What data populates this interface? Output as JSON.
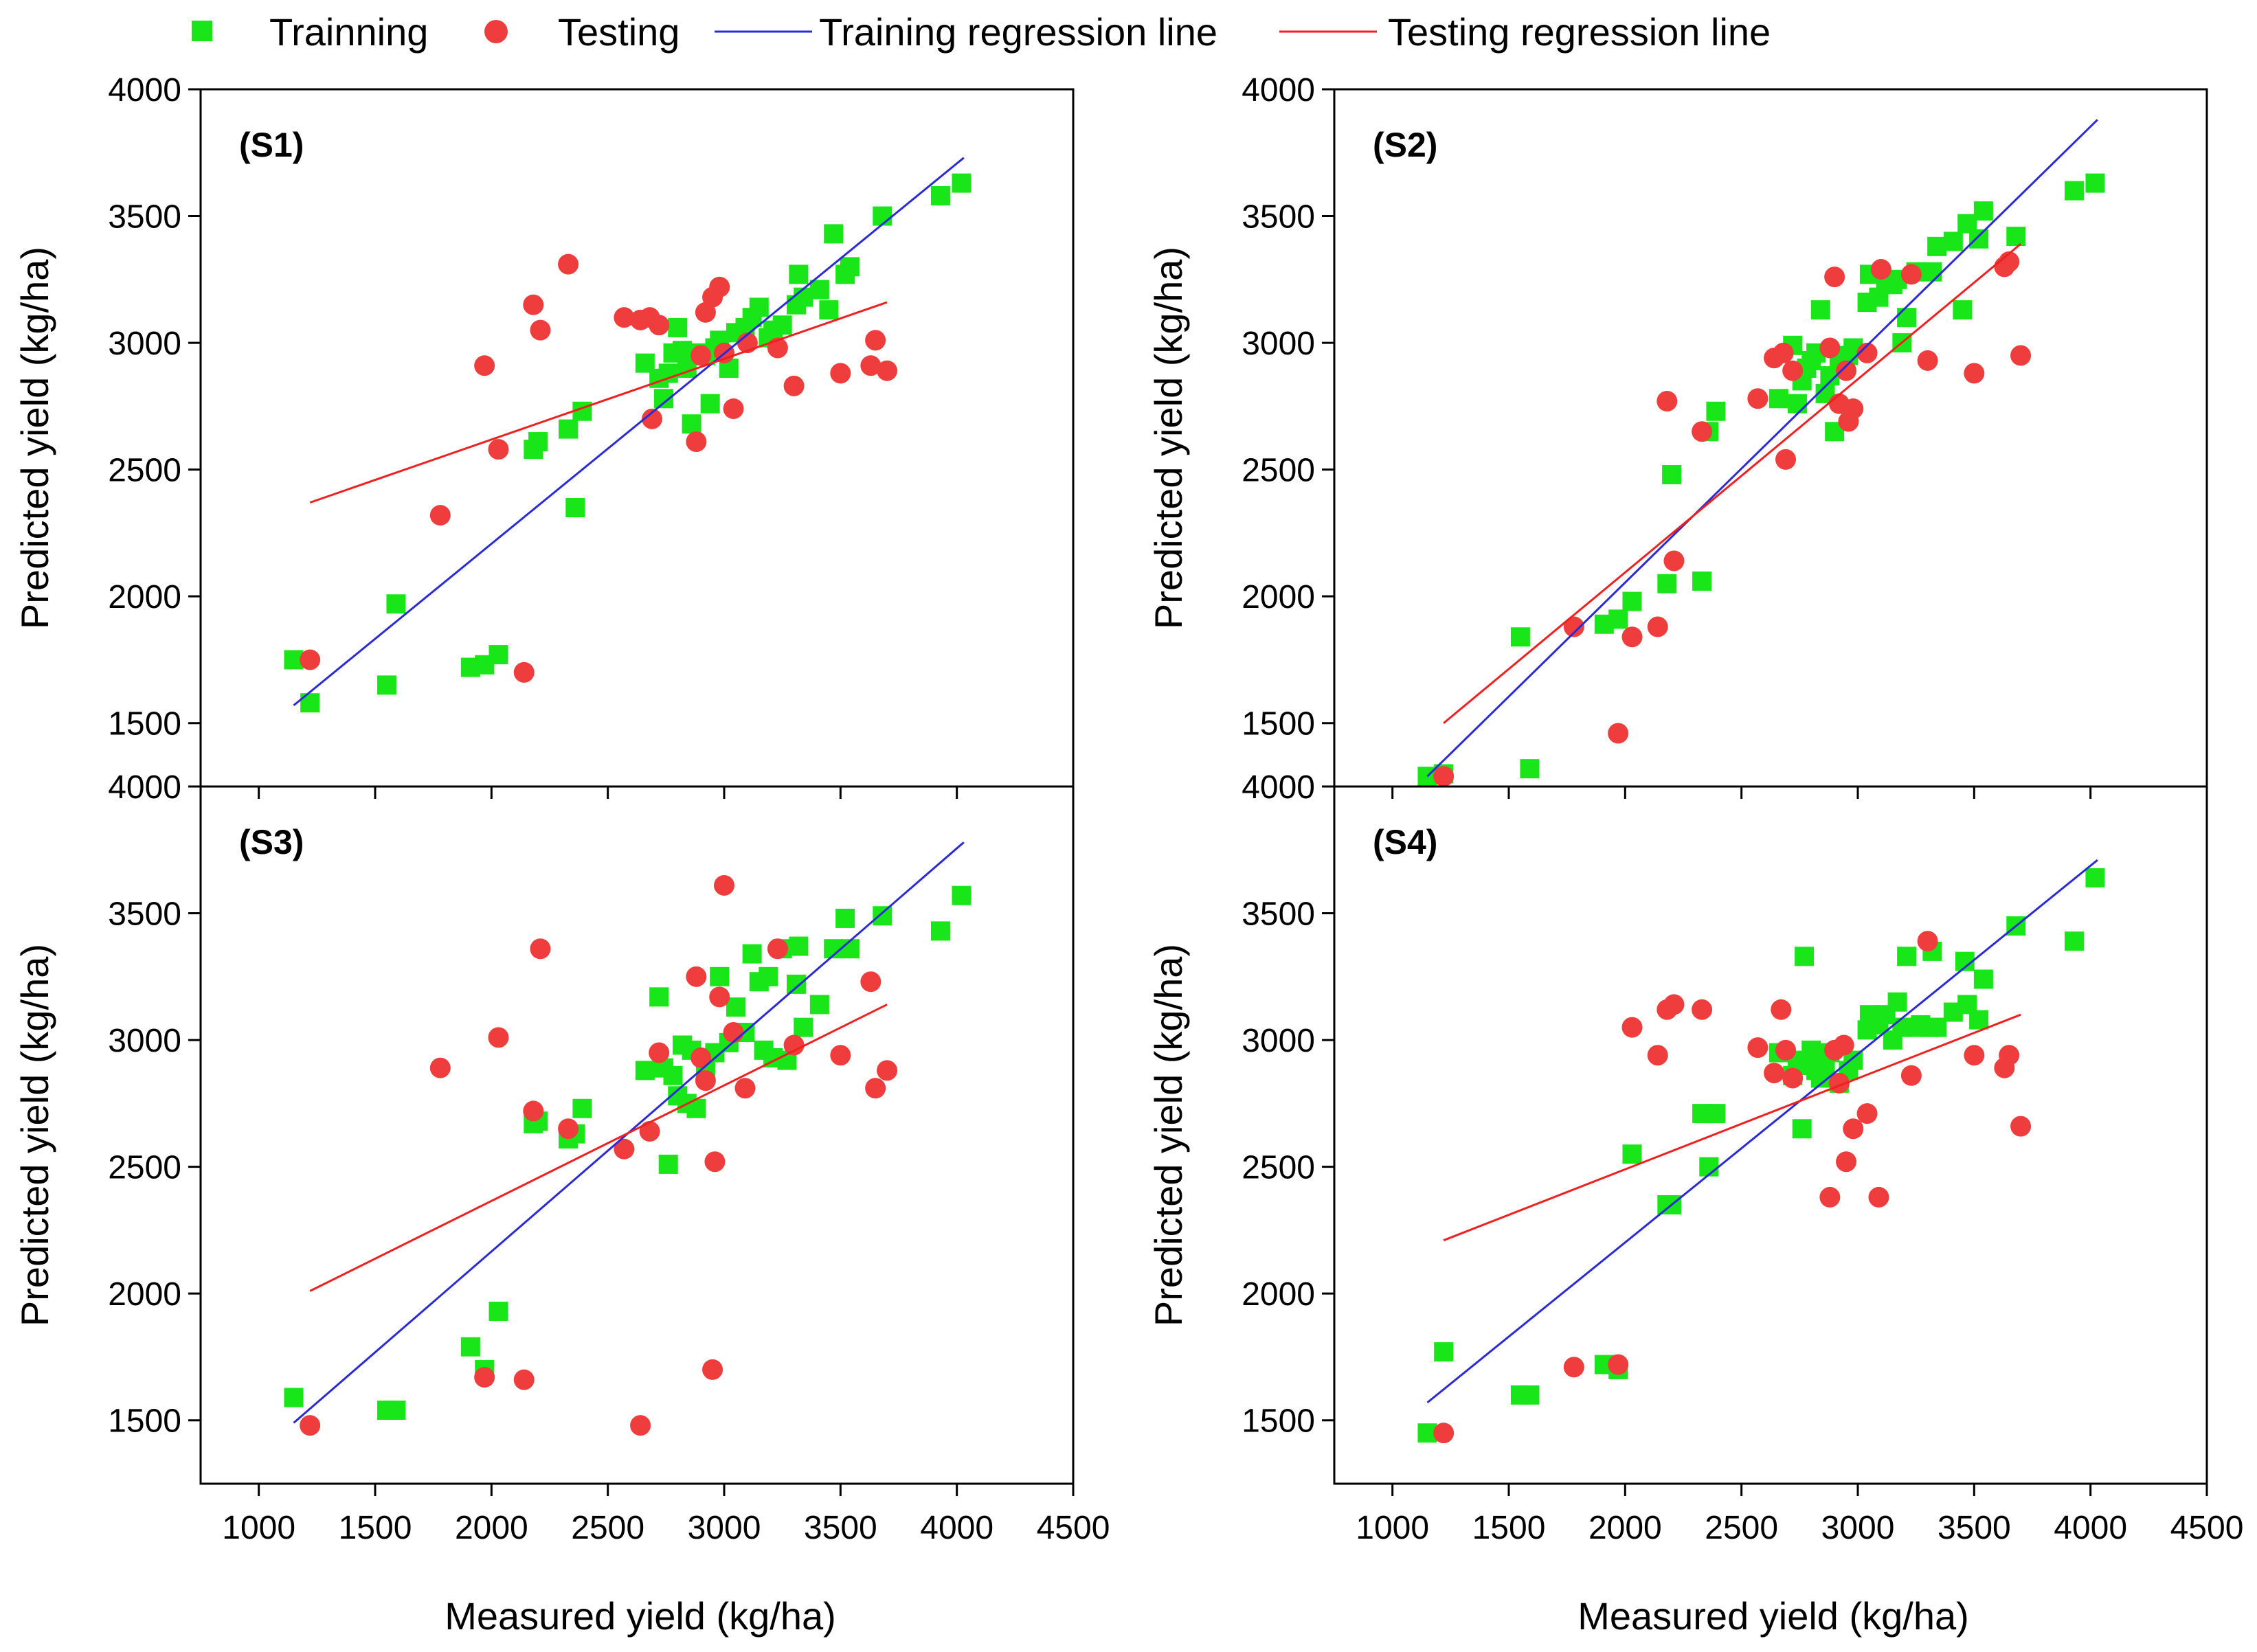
{
  "legend": {
    "training": "Trainning",
    "testing": "Testing",
    "training_line": "Training regression line",
    "testing_line": "Testing regression line"
  },
  "colors": {
    "training": "#19e619",
    "testing": "#ef3c3c",
    "training_line": "#2b2bd6",
    "testing_line": "#ee2020"
  },
  "chart_data": {
    "type": "scatter",
    "xlabel": "Measured yield (kg/ha)",
    "ylabel": "Predicted yield (kg/ha)",
    "xlim": [
      750,
      4500
    ],
    "ylim": [
      1250,
      4000
    ],
    "xticks": [
      1000,
      1500,
      2000,
      2500,
      3000,
      3500,
      4000,
      4500
    ],
    "yticks": [
      1500,
      2000,
      2500,
      3000,
      3500,
      4000
    ],
    "panels": [
      {
        "label": "(S1)",
        "training": [
          [
            1150,
            1750
          ],
          [
            1220,
            1580
          ],
          [
            1550,
            1650
          ],
          [
            1590,
            1970
          ],
          [
            1910,
            1720
          ],
          [
            1970,
            1730
          ],
          [
            2030,
            1770
          ],
          [
            2180,
            2580
          ],
          [
            2200,
            2610
          ],
          [
            2330,
            2660
          ],
          [
            2360,
            2350
          ],
          [
            2390,
            2730
          ],
          [
            2660,
            2920
          ],
          [
            2720,
            2860
          ],
          [
            2740,
            2780
          ],
          [
            2760,
            2880
          ],
          [
            2780,
            2960
          ],
          [
            2800,
            3060
          ],
          [
            2820,
            2970
          ],
          [
            2840,
            2900
          ],
          [
            2860,
            2680
          ],
          [
            2880,
            2960
          ],
          [
            2920,
            2950
          ],
          [
            2940,
            2760
          ],
          [
            2960,
            2980
          ],
          [
            2980,
            3010
          ],
          [
            3020,
            2900
          ],
          [
            3050,
            3040
          ],
          [
            3090,
            3060
          ],
          [
            3120,
            3100
          ],
          [
            3150,
            3140
          ],
          [
            3190,
            3020
          ],
          [
            3210,
            3050
          ],
          [
            3250,
            3070
          ],
          [
            3310,
            3150
          ],
          [
            3320,
            3270
          ],
          [
            3340,
            3180
          ],
          [
            3410,
            3210
          ],
          [
            3450,
            3130
          ],
          [
            3470,
            3430
          ],
          [
            3520,
            3270
          ],
          [
            3540,
            3300
          ],
          [
            3680,
            3500
          ],
          [
            3930,
            3580
          ],
          [
            4020,
            3630
          ]
        ],
        "testing": [
          [
            1220,
            1750
          ],
          [
            1780,
            2320
          ],
          [
            1970,
            2910
          ],
          [
            2030,
            2580
          ],
          [
            2140,
            1700
          ],
          [
            2180,
            3150
          ],
          [
            2210,
            3050
          ],
          [
            2330,
            3310
          ],
          [
            2570,
            3100
          ],
          [
            2640,
            3090
          ],
          [
            2680,
            3100
          ],
          [
            2690,
            2700
          ],
          [
            2720,
            3070
          ],
          [
            2880,
            2610
          ],
          [
            2900,
            2950
          ],
          [
            2920,
            3120
          ],
          [
            2950,
            3180
          ],
          [
            2980,
            3220
          ],
          [
            3000,
            2960
          ],
          [
            3040,
            2740
          ],
          [
            3100,
            3000
          ],
          [
            3230,
            2980
          ],
          [
            3300,
            2830
          ],
          [
            3500,
            2880
          ],
          [
            3630,
            2910
          ],
          [
            3650,
            3010
          ],
          [
            3700,
            2890
          ]
        ],
        "training_line": [
          [
            1150,
            1570
          ],
          [
            4030,
            3730
          ]
        ],
        "testing_line": [
          [
            1220,
            2370
          ],
          [
            3700,
            3160
          ]
        ]
      },
      {
        "label": "(S2)",
        "training": [
          [
            1150,
            1290
          ],
          [
            1220,
            1300
          ],
          [
            1550,
            1840
          ],
          [
            1590,
            1320
          ],
          [
            1910,
            1890
          ],
          [
            1970,
            1910
          ],
          [
            2030,
            1980
          ],
          [
            2180,
            2050
          ],
          [
            2200,
            2480
          ],
          [
            2330,
            2060
          ],
          [
            2360,
            2650
          ],
          [
            2390,
            2730
          ],
          [
            2660,
            2780
          ],
          [
            2720,
            2990
          ],
          [
            2740,
            2760
          ],
          [
            2760,
            2850
          ],
          [
            2780,
            2900
          ],
          [
            2800,
            2930
          ],
          [
            2820,
            2960
          ],
          [
            2840,
            3130
          ],
          [
            2860,
            2800
          ],
          [
            2880,
            2870
          ],
          [
            2900,
            2650
          ],
          [
            2920,
            2940
          ],
          [
            2960,
            2950
          ],
          [
            2980,
            2980
          ],
          [
            3040,
            3160
          ],
          [
            3050,
            3270
          ],
          [
            3090,
            3180
          ],
          [
            3120,
            3230
          ],
          [
            3150,
            3230
          ],
          [
            3170,
            3250
          ],
          [
            3190,
            3000
          ],
          [
            3210,
            3100
          ],
          [
            3250,
            3280
          ],
          [
            3320,
            3280
          ],
          [
            3340,
            3380
          ],
          [
            3410,
            3400
          ],
          [
            3450,
            3130
          ],
          [
            3470,
            3470
          ],
          [
            3520,
            3410
          ],
          [
            3540,
            3520
          ],
          [
            3680,
            3420
          ],
          [
            3930,
            3600
          ],
          [
            4020,
            3630
          ]
        ],
        "testing": [
          [
            1220,
            1290
          ],
          [
            1780,
            1880
          ],
          [
            1970,
            1460
          ],
          [
            2030,
            1840
          ],
          [
            2140,
            1880
          ],
          [
            2180,
            2770
          ],
          [
            2210,
            2140
          ],
          [
            2330,
            2650
          ],
          [
            2570,
            2780
          ],
          [
            2640,
            2940
          ],
          [
            2680,
            2960
          ],
          [
            2690,
            2540
          ],
          [
            2720,
            2890
          ],
          [
            2880,
            2980
          ],
          [
            2900,
            3260
          ],
          [
            2920,
            2760
          ],
          [
            2950,
            2890
          ],
          [
            2960,
            2690
          ],
          [
            2980,
            2740
          ],
          [
            3040,
            2960
          ],
          [
            3100,
            3290
          ],
          [
            3230,
            3270
          ],
          [
            3300,
            2930
          ],
          [
            3500,
            2880
          ],
          [
            3630,
            3300
          ],
          [
            3650,
            3320
          ],
          [
            3700,
            2950
          ]
        ],
        "training_line": [
          [
            1150,
            1290
          ],
          [
            4030,
            3880
          ]
        ],
        "testing_line": [
          [
            1220,
            1500
          ],
          [
            3700,
            3390
          ]
        ]
      },
      {
        "label": "(S3)",
        "training": [
          [
            1150,
            1590
          ],
          [
            1550,
            1540
          ],
          [
            1590,
            1540
          ],
          [
            1910,
            1790
          ],
          [
            1970,
            1700
          ],
          [
            2030,
            1930
          ],
          [
            2180,
            2670
          ],
          [
            2200,
            2680
          ],
          [
            2330,
            2610
          ],
          [
            2360,
            2630
          ],
          [
            2390,
            2730
          ],
          [
            2660,
            2880
          ],
          [
            2720,
            3170
          ],
          [
            2740,
            2890
          ],
          [
            2760,
            2510
          ],
          [
            2780,
            2860
          ],
          [
            2800,
            2780
          ],
          [
            2820,
            2980
          ],
          [
            2840,
            2750
          ],
          [
            2860,
            2960
          ],
          [
            2880,
            2730
          ],
          [
            2920,
            2880
          ],
          [
            2960,
            2950
          ],
          [
            2980,
            3250
          ],
          [
            3020,
            2990
          ],
          [
            3050,
            3130
          ],
          [
            3090,
            3030
          ],
          [
            3120,
            3340
          ],
          [
            3150,
            3230
          ],
          [
            3170,
            2960
          ],
          [
            3190,
            3250
          ],
          [
            3210,
            2930
          ],
          [
            3250,
            3360
          ],
          [
            3270,
            2920
          ],
          [
            3310,
            3220
          ],
          [
            3320,
            3370
          ],
          [
            3340,
            3050
          ],
          [
            3410,
            3140
          ],
          [
            3470,
            3360
          ],
          [
            3520,
            3480
          ],
          [
            3540,
            3360
          ],
          [
            3680,
            3490
          ],
          [
            3930,
            3430
          ],
          [
            4020,
            3570
          ]
        ],
        "testing": [
          [
            1220,
            1480
          ],
          [
            1780,
            2890
          ],
          [
            1970,
            1670
          ],
          [
            2030,
            3010
          ],
          [
            2140,
            1660
          ],
          [
            2180,
            2720
          ],
          [
            2210,
            3360
          ],
          [
            2330,
            2650
          ],
          [
            2570,
            2570
          ],
          [
            2640,
            1480
          ],
          [
            2680,
            2640
          ],
          [
            2720,
            2950
          ],
          [
            2880,
            3250
          ],
          [
            2900,
            2930
          ],
          [
            2920,
            2840
          ],
          [
            2950,
            1700
          ],
          [
            2960,
            2520
          ],
          [
            2980,
            3170
          ],
          [
            3000,
            3610
          ],
          [
            3040,
            3030
          ],
          [
            3090,
            2810
          ],
          [
            3230,
            3360
          ],
          [
            3300,
            2980
          ],
          [
            3500,
            2940
          ],
          [
            3630,
            3230
          ],
          [
            3650,
            2810
          ],
          [
            3700,
            2880
          ]
        ],
        "training_line": [
          [
            1150,
            1490
          ],
          [
            4030,
            3780
          ]
        ],
        "testing_line": [
          [
            1220,
            2010
          ],
          [
            3700,
            3140
          ]
        ]
      },
      {
        "label": "(S4)",
        "training": [
          [
            1150,
            1450
          ],
          [
            1220,
            1770
          ],
          [
            1550,
            1600
          ],
          [
            1590,
            1600
          ],
          [
            1910,
            1720
          ],
          [
            1970,
            1700
          ],
          [
            2030,
            2550
          ],
          [
            2180,
            2350
          ],
          [
            2200,
            2350
          ],
          [
            2330,
            2710
          ],
          [
            2360,
            2500
          ],
          [
            2390,
            2710
          ],
          [
            2660,
            2950
          ],
          [
            2720,
            2860
          ],
          [
            2740,
            2920
          ],
          [
            2760,
            2650
          ],
          [
            2770,
            3330
          ],
          [
            2780,
            2900
          ],
          [
            2800,
            2960
          ],
          [
            2820,
            2880
          ],
          [
            2840,
            2850
          ],
          [
            2860,
            2900
          ],
          [
            2880,
            2950
          ],
          [
            2920,
            2830
          ],
          [
            2960,
            2880
          ],
          [
            2980,
            2920
          ],
          [
            3040,
            3040
          ],
          [
            3050,
            3100
          ],
          [
            3090,
            3060
          ],
          [
            3120,
            3100
          ],
          [
            3150,
            3000
          ],
          [
            3170,
            3150
          ],
          [
            3190,
            3050
          ],
          [
            3210,
            3330
          ],
          [
            3250,
            3050
          ],
          [
            3270,
            3060
          ],
          [
            3310,
            3050
          ],
          [
            3320,
            3350
          ],
          [
            3340,
            3050
          ],
          [
            3410,
            3110
          ],
          [
            3460,
            3310
          ],
          [
            3470,
            3140
          ],
          [
            3520,
            3080
          ],
          [
            3540,
            3240
          ],
          [
            3680,
            3450
          ],
          [
            3930,
            3390
          ],
          [
            4020,
            3640
          ]
        ],
        "testing": [
          [
            1220,
            1450
          ],
          [
            1780,
            1710
          ],
          [
            1970,
            1720
          ],
          [
            2030,
            3050
          ],
          [
            2140,
            2940
          ],
          [
            2180,
            3120
          ],
          [
            2210,
            3140
          ],
          [
            2330,
            3120
          ],
          [
            2570,
            2970
          ],
          [
            2640,
            2870
          ],
          [
            2670,
            3120
          ],
          [
            2690,
            2960
          ],
          [
            2720,
            2850
          ],
          [
            2880,
            2380
          ],
          [
            2900,
            2960
          ],
          [
            2920,
            2830
          ],
          [
            2940,
            2980
          ],
          [
            2950,
            2520
          ],
          [
            2980,
            2650
          ],
          [
            3040,
            2710
          ],
          [
            3090,
            2380
          ],
          [
            3230,
            2860
          ],
          [
            3300,
            3390
          ],
          [
            3500,
            2940
          ],
          [
            3630,
            2890
          ],
          [
            3650,
            2940
          ],
          [
            3700,
            2660
          ]
        ],
        "training_line": [
          [
            1150,
            1570
          ],
          [
            4030,
            3710
          ]
        ],
        "testing_line": [
          [
            1220,
            2210
          ],
          [
            3700,
            3100
          ]
        ]
      }
    ]
  }
}
